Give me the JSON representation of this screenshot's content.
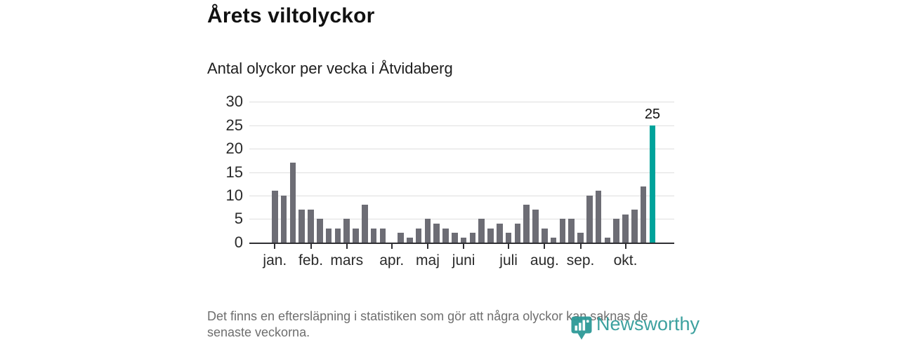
{
  "header": {
    "title": "Årets viltolyckor",
    "subtitle": "Antal olyckor per vecka i Åtvidaberg"
  },
  "chart_data": {
    "type": "bar",
    "title": "Årets viltolyckor",
    "subtitle": "Antal olyckor per vecka i Åtvidaberg",
    "ylabel": "",
    "xlabel": "",
    "ylim": [
      0,
      30
    ],
    "grid": true,
    "y_ticks": [
      0,
      5,
      10,
      15,
      20,
      25,
      30
    ],
    "values": [
      11,
      10,
      17,
      7,
      7,
      5,
      3,
      3,
      5,
      3,
      8,
      3,
      3,
      0,
      2,
      1,
      3,
      5,
      4,
      3,
      2,
      1,
      2,
      5,
      3,
      4,
      2,
      4,
      8,
      7,
      3,
      1,
      5,
      5,
      2,
      10,
      11,
      1,
      5,
      6,
      7,
      12,
      25
    ],
    "highlight_index": 42,
    "highlight_label": "25",
    "x_month_ticks": [
      {
        "label": "jan.",
        "bar_index": 0
      },
      {
        "label": "feb.",
        "bar_index": 4
      },
      {
        "label": "mars",
        "bar_index": 8
      },
      {
        "label": "apr.",
        "bar_index": 13
      },
      {
        "label": "maj",
        "bar_index": 17
      },
      {
        "label": "juni",
        "bar_index": 21
      },
      {
        "label": "juli",
        "bar_index": 26
      },
      {
        "label": "aug.",
        "bar_index": 30
      },
      {
        "label": "sep.",
        "bar_index": 34
      },
      {
        "label": "okt.",
        "bar_index": 39
      }
    ],
    "colors": {
      "bar": "#6d6d75",
      "highlight": "#00a39b",
      "grid": "#dfdfdf",
      "axis": "#2f2f33",
      "tick_text": "#2a2a2a"
    }
  },
  "footer": {
    "line1": "Det finns en eftersläpning i statistiken som gör att några olyckor kan saknas de",
    "line2": "senaste veckorna."
  },
  "logo": {
    "text": "Newsworthy",
    "color": "#2d9997"
  }
}
